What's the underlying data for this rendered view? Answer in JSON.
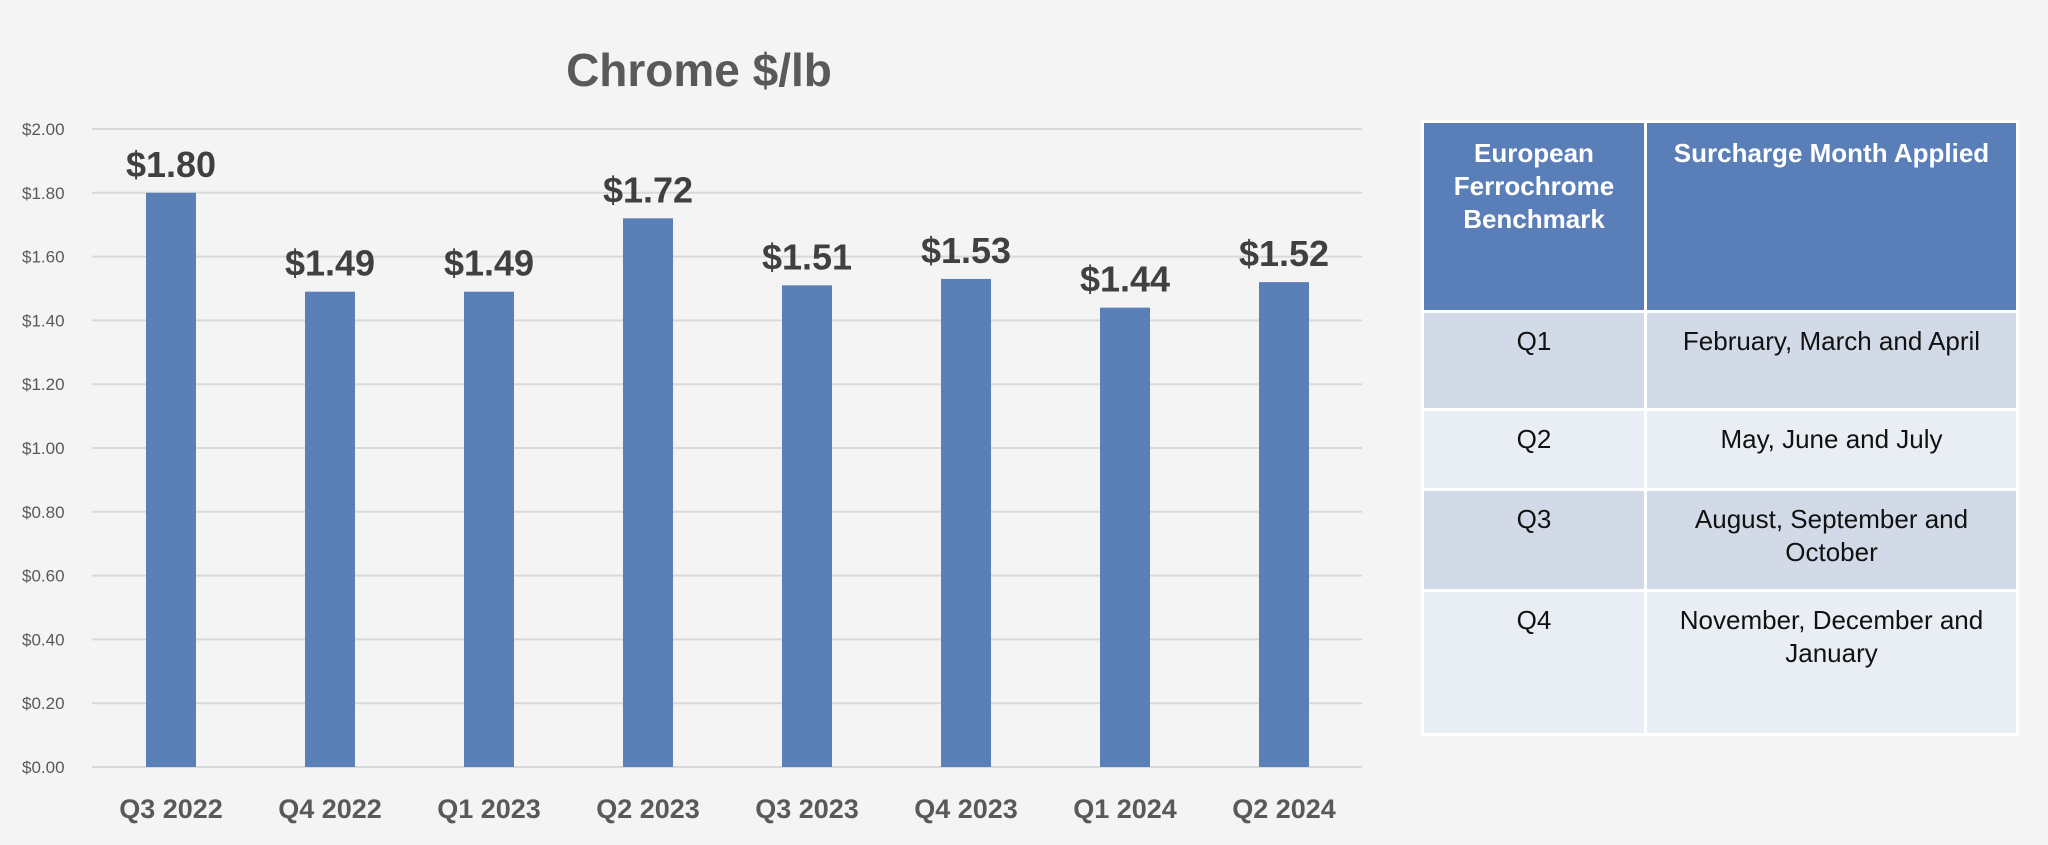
{
  "chart_data": {
    "type": "bar",
    "title": "Chrome $/lb",
    "categories": [
      "Q3 2022",
      "Q4 2022",
      "Q1 2023",
      "Q2 2023",
      "Q3 2023",
      "Q4 2023",
      "Q1 2024",
      "Q2 2024"
    ],
    "values": [
      1.8,
      1.49,
      1.49,
      1.72,
      1.51,
      1.53,
      1.44,
      1.52
    ],
    "data_labels": [
      "$1.80",
      "$1.49",
      "$1.49",
      "$1.72",
      "$1.51",
      "$1.53",
      "$1.44",
      "$1.52"
    ],
    "yticks": [
      "$0.00",
      "$0.20",
      "$0.40",
      "$0.60",
      "$0.80",
      "$1.00",
      "$1.20",
      "$1.40",
      "$1.60",
      "$1.80",
      "$2.00"
    ],
    "ylim": [
      0,
      2.0
    ],
    "xlabel": "",
    "ylabel": "",
    "grid": true,
    "bar_color": "#5b80b8"
  },
  "table": {
    "headers": [
      "European Ferrochrome Benchmark",
      "Surcharge Month Applied"
    ],
    "rows": [
      [
        "Q1",
        "February, March and April"
      ],
      [
        "Q2",
        "May, June and July"
      ],
      [
        "Q3",
        "August, September and October"
      ],
      [
        "Q4",
        "November, December and January"
      ]
    ],
    "header_color": "#5a7fb8"
  }
}
